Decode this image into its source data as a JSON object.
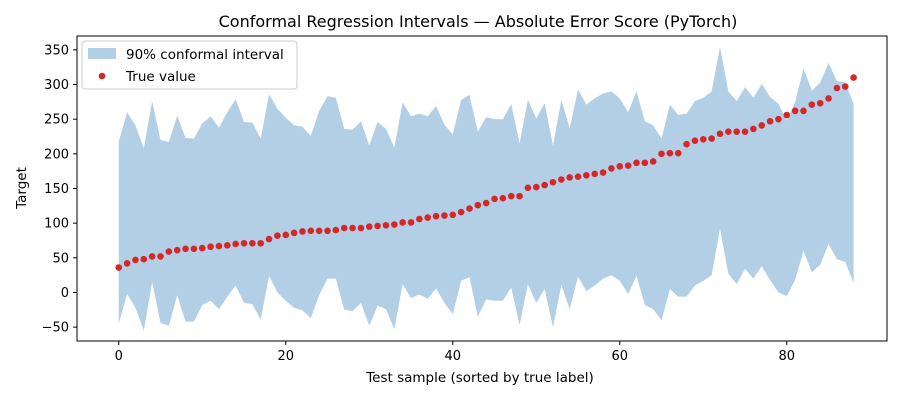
{
  "chart_data": {
    "type": "scatter",
    "title": "Conformal Regression Intervals — Absolute Error Score (PyTorch)",
    "xlabel": "Test sample (sorted by true label)",
    "ylabel": "Target",
    "xlim": [
      -5,
      92
    ],
    "ylim": [
      -70,
      370
    ],
    "xticks": [
      0,
      20,
      40,
      60,
      80
    ],
    "yticks": [
      -50,
      0,
      50,
      100,
      150,
      200,
      250,
      300,
      350
    ],
    "grid": false,
    "legend_position": "top-left",
    "colors": {
      "interval": "#b3cfe5",
      "true_value": "#d62728"
    },
    "series": [
      {
        "name": "90% conformal interval",
        "kind": "band",
        "upper": [
          218,
          260,
          241,
          208,
          276,
          220,
          217,
          255,
          223,
          222,
          244,
          254,
          238,
          260,
          279,
          246,
          245,
          222,
          286,
          265,
          252,
          241,
          239,
          226,
          262,
          283,
          281,
          236,
          235,
          247,
          212,
          246,
          236,
          209,
          274,
          254,
          258,
          254,
          269,
          242,
          228,
          278,
          285,
          232,
          253,
          250,
          250,
          272,
          215,
          278,
          251,
          273,
          212,
          278,
          237,
          293,
          271,
          280,
          287,
          290,
          280,
          260,
          290,
          247,
          241,
          222,
          271,
          256,
          258,
          276,
          281,
          290,
          354,
          290,
          276,
          296,
          281,
          301,
          282,
          272,
          248,
          275,
          323,
          291,
          303,
          331,
          305,
          303,
          272
        ],
        "lower": [
          -45,
          -2,
          -22,
          -55,
          15,
          -44,
          -48,
          -4,
          -42,
          -42,
          -18,
          -12,
          -24,
          -6,
          10,
          -15,
          -17,
          -39,
          24,
          0,
          -12,
          -22,
          -26,
          -37,
          -4,
          20,
          20,
          -25,
          -27,
          -15,
          -48,
          -19,
          -24,
          -53,
          12,
          -8,
          -3,
          -9,
          6,
          -15,
          -31,
          17,
          22,
          -35,
          -10,
          -12,
          -12,
          7,
          -47,
          12,
          -15,
          5,
          -50,
          11,
          -24,
          23,
          2,
          10,
          20,
          25,
          17,
          -2,
          24,
          -18,
          -24,
          -40,
          5,
          -6,
          -6,
          10,
          17,
          25,
          92,
          27,
          12,
          34,
          20,
          38,
          18,
          0,
          -5,
          18,
          60,
          29,
          40,
          70,
          48,
          44,
          14
        ]
      },
      {
        "name": "True value",
        "kind": "points",
        "values": [
          36,
          42,
          47,
          48,
          52,
          52,
          59,
          61,
          63,
          63,
          64,
          66,
          67,
          68,
          70,
          71,
          71,
          71,
          77,
          82,
          83,
          86,
          88,
          89,
          89,
          89,
          90,
          93,
          93,
          93,
          95,
          96,
          97,
          98,
          101,
          101,
          106,
          108,
          110,
          111,
          112,
          116,
          121,
          126,
          129,
          135,
          136,
          139,
          139,
          151,
          152,
          155,
          159,
          163,
          166,
          167,
          169,
          171,
          173,
          179,
          182,
          183,
          187,
          187,
          189,
          200,
          201,
          201,
          214,
          219,
          221,
          222,
          229,
          232,
          232,
          232,
          236,
          241,
          247,
          250,
          256,
          262,
          262,
          271,
          273,
          280,
          295,
          297,
          310
        ]
      }
    ]
  }
}
